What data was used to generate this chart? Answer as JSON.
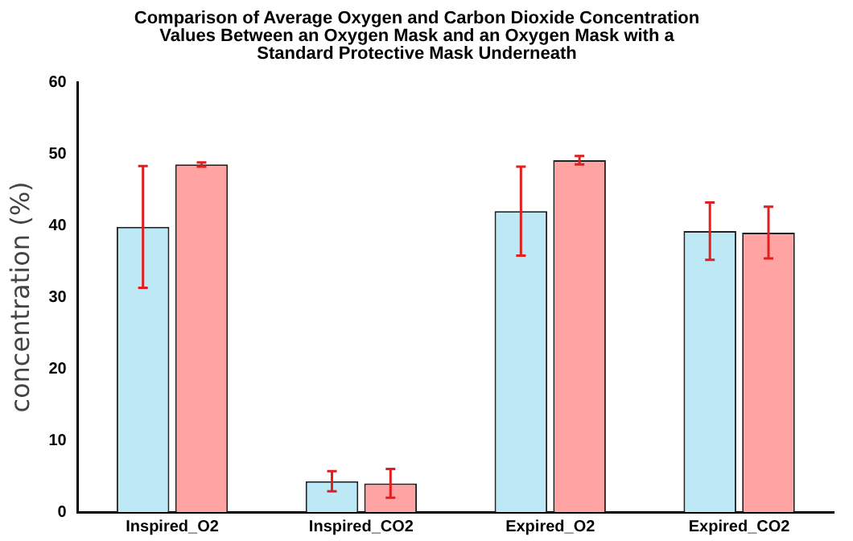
{
  "chart_data": {
    "type": "bar",
    "title": "Comparison of Average Oxygen and Carbon Dioxide Concentration\nValues Between an Oxygen Mask and an Oxygen Mask with a\nStandard Protective Mask Underneath",
    "ylabel": "concentration (%)",
    "categories": [
      "Inspired_O2",
      "Inspired_CO2",
      "Expired_O2",
      "Expired_CO2"
    ],
    "series": [
      {
        "color": "#bde9f7",
        "values": [
          39.8,
          4.3,
          42,
          39.2
        ],
        "errors": [
          8.5,
          1.4,
          6.2,
          4
        ]
      },
      {
        "color": "#ffa3a3",
        "values": [
          48.5,
          4,
          49.1,
          39
        ],
        "errors": [
          0.3,
          2,
          0.6,
          3.6
        ]
      }
    ],
    "ylim": [
      0,
      60
    ],
    "yticks": [
      0,
      10,
      20,
      30,
      40,
      50,
      60
    ],
    "grid": false,
    "legend": false
  }
}
